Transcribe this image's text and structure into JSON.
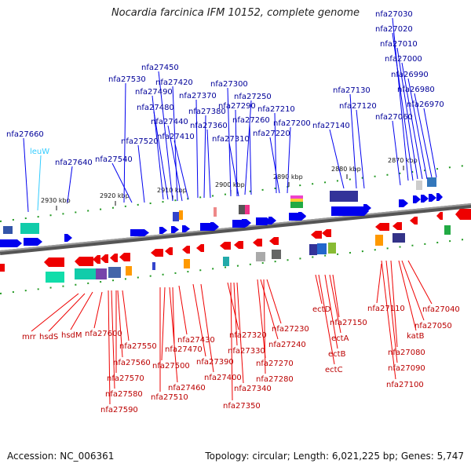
{
  "title": "Nocardia farcinica IFM 10152, complete genome",
  "footer": {
    "accession": "Accession: NC_006361",
    "summary": "Topology: circular; Length: 6,021,225 bp; Genes: 5,747"
  },
  "colors": {
    "forward": "#0000ee",
    "reverse": "#ee0000",
    "forward_label": "#000099",
    "reverse_label": "#bb0000",
    "trna": "#33ccff"
  },
  "scale_ticks": [
    "2930 kbp",
    "2920 kbp",
    "2910 kbp",
    "2900 kbp",
    "2890 kbp",
    "2880 kbp",
    "2870 kbp"
  ],
  "forward_labels": [
    "nfa27660",
    "nfa27640",
    "nfa27540",
    "nfa27530",
    "nfa27520",
    "nfa27490",
    "nfa27480",
    "nfa27450",
    "nfa27420",
    "nfa27440",
    "nfa27410",
    "nfa27370",
    "nfa27380",
    "nfa27360",
    "nfa27300",
    "nfa27290",
    "nfa27310",
    "nfa27250",
    "nfa27260",
    "nfa27210",
    "nfa27220",
    "nfa27200",
    "nfa27140",
    "nfa27130",
    "nfa27120",
    "nfa27060",
    "nfa27030",
    "nfa27020",
    "nfa27010",
    "nfa27000",
    "nfa26990",
    "nfa26980",
    "nfa26970"
  ],
  "trna_labels": [
    "leuW"
  ],
  "reverse_labels": [
    "mrr",
    "hsdS",
    "hsdM",
    "nfa27600",
    "nfa27550",
    "nfa27560",
    "nfa27570",
    "nfa27580",
    "nfa27590",
    "nfa27470",
    "nfa27500",
    "nfa27510",
    "nfa27460",
    "nfa27430",
    "nfa27390",
    "nfa27400",
    "nfa27320",
    "nfa27330",
    "nfa27340",
    "nfa27350",
    "nfa27230",
    "nfa27240",
    "nfa27270",
    "nfa27280",
    "ectD",
    "ectA",
    "ectB",
    "ectC",
    "nfa27150",
    "nfa27110",
    "nfa27040",
    "nfa27050",
    "katB",
    "nfa27080",
    "nfa27090",
    "nfa27100"
  ]
}
